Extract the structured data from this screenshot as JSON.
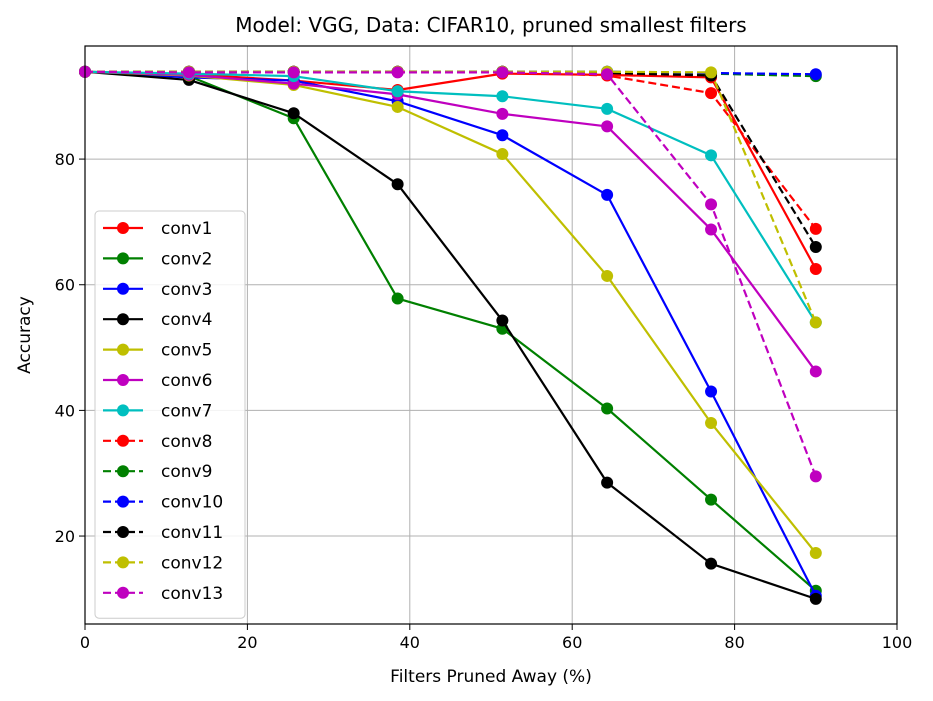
{
  "chart_data": {
    "type": "line",
    "title": "Model: VGG, Data: CIFAR10, pruned smallest filters",
    "xlabel": "Filters Pruned Away (%)",
    "ylabel": "Accuracy",
    "xlim": [
      0,
      100
    ],
    "ylim": [
      6,
      98
    ],
    "xticks": [
      0,
      20,
      40,
      60,
      80,
      100
    ],
    "yticks": [
      20,
      40,
      60,
      80
    ],
    "grid": true,
    "legend_position": "lower-left",
    "x": [
      0,
      12.8,
      25.7,
      38.5,
      51.4,
      64.3,
      77.1,
      90.0
    ],
    "series": [
      {
        "name": "conv1",
        "color": "#ff0000",
        "dash": "solid",
        "values": [
          93.9,
          93.5,
          92.5,
          91.0,
          93.6,
          93.4,
          93.0,
          62.5
        ]
      },
      {
        "name": "conv2",
        "color": "#008000",
        "dash": "solid",
        "values": [
          93.9,
          93.2,
          86.5,
          57.8,
          53.0,
          40.3,
          25.8,
          11.3
        ]
      },
      {
        "name": "conv3",
        "color": "#0000ff",
        "dash": "solid",
        "values": [
          93.9,
          93.0,
          92.5,
          89.2,
          83.8,
          74.3,
          43.0,
          10.5
        ]
      },
      {
        "name": "conv4",
        "color": "#000000",
        "dash": "solid",
        "values": [
          93.9,
          92.6,
          87.3,
          76.0,
          54.3,
          28.5,
          15.6,
          10.0
        ]
      },
      {
        "name": "conv5",
        "color": "#bfbf00",
        "dash": "solid",
        "values": [
          93.9,
          93.3,
          91.8,
          88.3,
          80.8,
          61.4,
          38.0,
          17.3
        ]
      },
      {
        "name": "conv6",
        "color": "#bf00bf",
        "dash": "solid",
        "values": [
          93.9,
          93.4,
          92.0,
          90.3,
          87.2,
          85.2,
          68.8,
          46.2
        ]
      },
      {
        "name": "conv7",
        "color": "#00bfbf",
        "dash": "solid",
        "values": [
          93.9,
          93.6,
          93.2,
          90.8,
          90.0,
          88.0,
          80.6,
          54.0
        ]
      },
      {
        "name": "conv8",
        "color": "#ff0000",
        "dash": "dashed",
        "values": [
          93.9,
          93.9,
          93.9,
          93.9,
          93.9,
          93.3,
          90.5,
          68.9
        ]
      },
      {
        "name": "conv9",
        "color": "#008000",
        "dash": "dashed",
        "values": [
          93.9,
          93.9,
          93.9,
          93.9,
          93.9,
          93.9,
          93.6,
          93.2
        ]
      },
      {
        "name": "conv10",
        "color": "#0000ff",
        "dash": "dashed",
        "values": [
          93.9,
          93.9,
          93.9,
          93.9,
          93.9,
          93.9,
          93.7,
          93.5
        ]
      },
      {
        "name": "conv11",
        "color": "#000000",
        "dash": "dashed",
        "values": [
          93.9,
          93.9,
          93.9,
          93.9,
          93.9,
          93.7,
          93.3,
          66.0
        ]
      },
      {
        "name": "conv12",
        "color": "#bfbf00",
        "dash": "dashed",
        "values": [
          93.9,
          93.9,
          93.9,
          93.9,
          93.9,
          93.9,
          93.8,
          54.0
        ]
      },
      {
        "name": "conv13",
        "color": "#bf00bf",
        "dash": "dashed",
        "values": [
          93.9,
          93.8,
          93.8,
          93.8,
          93.8,
          93.5,
          72.8,
          29.5
        ]
      }
    ]
  }
}
